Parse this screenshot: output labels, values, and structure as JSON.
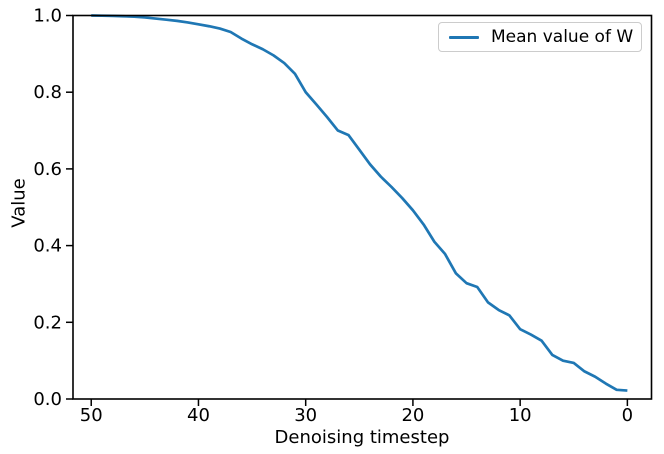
{
  "figure": {
    "background": "#ffffff",
    "text_color": "#000000",
    "spine_color": "#000000"
  },
  "chart_data": {
    "type": "line",
    "title": "",
    "xlabel": "Denoising timestep",
    "ylabel": "Value",
    "grid": false,
    "x_axis": {
      "inverted": true,
      "lim": [
        51.7,
        -2.25
      ],
      "ticks": [
        50,
        40,
        30,
        20,
        10,
        0
      ],
      "tick_labels": [
        "50",
        "40",
        "30",
        "20",
        "10",
        "0"
      ]
    },
    "y_axis": {
      "lim": [
        0.0,
        1.0
      ],
      "ticks": [
        0.0,
        0.2,
        0.4,
        0.6,
        0.8,
        1.0
      ],
      "tick_labels": [
        "0.0",
        "0.2",
        "0.4",
        "0.6",
        "0.8",
        "1.0"
      ]
    },
    "legend": {
      "position": "upper right",
      "entries": [
        {
          "label": "Mean value of W",
          "color": "#1f77b4"
        }
      ]
    },
    "series": [
      {
        "name": "Mean value of W",
        "color": "#1f77b4",
        "line_width": 2.7,
        "x": [
          50,
          49,
          48,
          47,
          46,
          45,
          44,
          43,
          42,
          41,
          40,
          39,
          38,
          37,
          36,
          35,
          34,
          33,
          32,
          31,
          30,
          29,
          28,
          27,
          26,
          25,
          24,
          23,
          22,
          21,
          20,
          19,
          18,
          17,
          16,
          15,
          14,
          13,
          12,
          11,
          10,
          9,
          8,
          7,
          6,
          5,
          4,
          3,
          2,
          1,
          0
        ],
        "y": [
          1.0,
          0.9995,
          0.999,
          0.998,
          0.997,
          0.995,
          0.992,
          0.989,
          0.986,
          0.982,
          0.977,
          0.972,
          0.966,
          0.957,
          0.94,
          0.925,
          0.912,
          0.896,
          0.876,
          0.848,
          0.8,
          0.768,
          0.735,
          0.7,
          0.688,
          0.65,
          0.612,
          0.58,
          0.553,
          0.524,
          0.492,
          0.455,
          0.41,
          0.378,
          0.328,
          0.302,
          0.292,
          0.252,
          0.232,
          0.218,
          0.182,
          0.168,
          0.152,
          0.115,
          0.1,
          0.094,
          0.072,
          0.058,
          0.04,
          0.024,
          0.022
        ]
      }
    ]
  }
}
